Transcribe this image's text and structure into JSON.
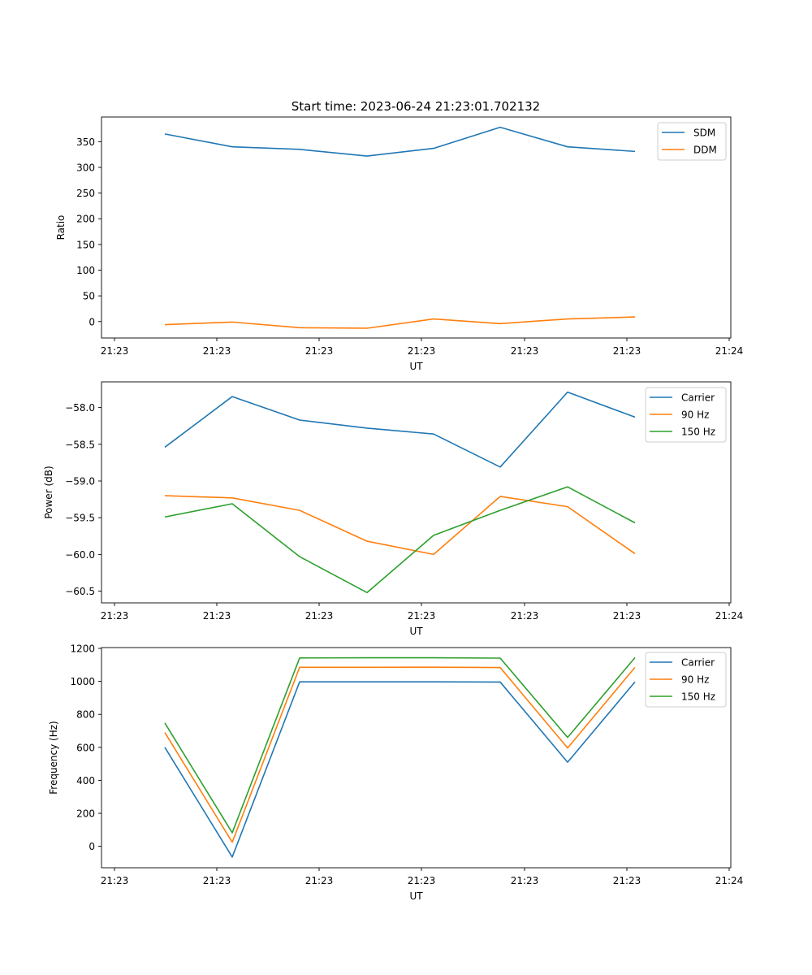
{
  "figure_title": "Start time: 2023-06-24 21:23:01.702132",
  "colors": {
    "blue": "#1f77b4",
    "orange": "#ff7f0e",
    "green": "#2ca02c"
  },
  "chart_data": [
    {
      "type": "line",
      "xlabel": "UT",
      "ylabel": "Ratio",
      "xticklabels": [
        "21:23",
        "21:23",
        "21:23",
        "21:23",
        "21:23",
        "21:23",
        "21:24"
      ],
      "yticks": [
        0,
        50,
        100,
        150,
        200,
        250,
        300,
        350
      ],
      "ylim": [
        -32,
        398
      ],
      "legend_position": "upper right",
      "grid": false,
      "series": [
        {
          "name": "SDM",
          "color": "#1f77b4",
          "values": [
            365,
            340,
            335,
            322,
            337,
            378,
            340,
            331
          ]
        },
        {
          "name": "DDM",
          "color": "#ff7f0e",
          "values": [
            -6,
            -1,
            -12,
            -13,
            5,
            -4,
            5,
            9
          ]
        }
      ]
    },
    {
      "type": "line",
      "xlabel": "UT",
      "ylabel": "Power (dB)",
      "xticklabels": [
        "21:23",
        "21:23",
        "21:23",
        "21:23",
        "21:23",
        "21:23",
        "21:24"
      ],
      "yticks": [
        -58.0,
        -58.5,
        -59.0,
        -59.5,
        -60.0,
        -60.5
      ],
      "ylim": [
        -60.66,
        -57.65
      ],
      "legend_position": "upper right",
      "grid": false,
      "series": [
        {
          "name": "Carrier",
          "color": "#1f77b4",
          "values": [
            -58.54,
            -57.85,
            -58.17,
            -58.28,
            -58.36,
            -58.81,
            -57.79,
            -58.13
          ]
        },
        {
          "name": "90 Hz",
          "color": "#ff7f0e",
          "values": [
            -59.2,
            -59.23,
            -59.4,
            -59.82,
            -60.0,
            -59.21,
            -59.35,
            -59.99
          ]
        },
        {
          "name": "150 Hz",
          "color": "#2ca02c",
          "values": [
            -59.49,
            -59.31,
            -60.03,
            -60.52,
            -59.74,
            -59.4,
            -59.08,
            -59.57
          ]
        }
      ]
    },
    {
      "type": "line",
      "xlabel": "UT",
      "ylabel": "Frequency (Hz)",
      "xticklabels": [
        "21:23",
        "21:23",
        "21:23",
        "21:23",
        "21:23",
        "21:23",
        "21:24"
      ],
      "yticks": [
        0,
        200,
        400,
        600,
        800,
        1000,
        1200
      ],
      "ylim": [
        -130,
        1205
      ],
      "legend_position": "upper right",
      "grid": false,
      "series": [
        {
          "name": "Carrier",
          "color": "#1f77b4",
          "values": [
            600,
            -65,
            997,
            997,
            997,
            996,
            510,
            997
          ]
        },
        {
          "name": "90 Hz",
          "color": "#ff7f0e",
          "values": [
            690,
            25,
            1085,
            1085,
            1086,
            1084,
            596,
            1085
          ]
        },
        {
          "name": "150 Hz",
          "color": "#2ca02c",
          "values": [
            748,
            82,
            1142,
            1143,
            1143,
            1141,
            660,
            1144
          ]
        }
      ]
    }
  ]
}
